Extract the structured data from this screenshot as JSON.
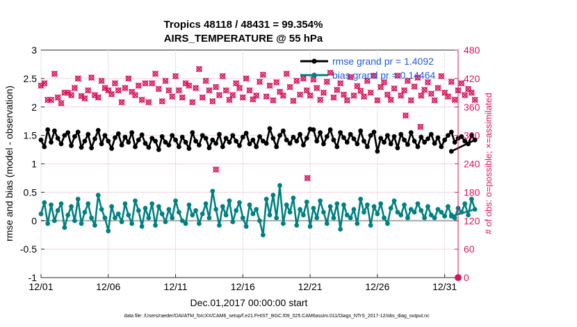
{
  "chart_data": {
    "type": "line",
    "title": "Tropics 48118 / 48431 = 99.354%",
    "subtitle": "AIRS_TEMPERATURE @ 55 hPa",
    "xlabel": "Dec.01,2017 00:00:00 start",
    "ylabel": "rmse and bias (model - observation)",
    "y2label": "# of obs: o=possible; ×=assimilated",
    "footer": "data file: /Users/raeder/DAI/ATM_forcXX/CAM6_setup/f.e21.FHIST_BGC.f09_025.CAM6assim.011/Diags_NTrS_2017-12/obs_diag_output.nc",
    "xlim": [
      1,
      32
    ],
    "ylim": [
      -1,
      3
    ],
    "y2lim": [
      0,
      480
    ],
    "x_ticks": [
      {
        "x": 1,
        "label": "12/01"
      },
      {
        "x": 6,
        "label": "12/06"
      },
      {
        "x": 11,
        "label": "12/11"
      },
      {
        "x": 16,
        "label": "12/16"
      },
      {
        "x": 21,
        "label": "12/21"
      },
      {
        "x": 26,
        "label": "12/26"
      },
      {
        "x": 31,
        "label": "12/31"
      }
    ],
    "y_ticks": [
      {
        "v": -1,
        "label": "-1"
      },
      {
        "v": -0.5,
        "label": "-0.5"
      },
      {
        "v": 0,
        "label": "0"
      },
      {
        "v": 0.5,
        "label": "0.5"
      },
      {
        "v": 1,
        "label": "1"
      },
      {
        "v": 1.5,
        "label": "1.5"
      },
      {
        "v": 2,
        "label": "2"
      },
      {
        "v": 2.5,
        "label": "2.5"
      },
      {
        "v": 3,
        "label": "3"
      }
    ],
    "y2_ticks": [
      {
        "v": 0,
        "label": "0"
      },
      {
        "v": 60,
        "label": "60"
      },
      {
        "v": 120,
        "label": "120"
      },
      {
        "v": 180,
        "label": "180"
      },
      {
        "v": 240,
        "label": "240"
      },
      {
        "v": 300,
        "label": "300"
      },
      {
        "v": 360,
        "label": "360"
      },
      {
        "v": 420,
        "label": "420"
      },
      {
        "v": 480,
        "label": "480"
      }
    ],
    "legend": [
      {
        "name": "rmse grand pr = 1.4092",
        "color": "#000000"
      },
      {
        "name": "bias grand pr = 0.14464",
        "color": "#008080"
      }
    ],
    "series": [
      {
        "name": "rmse",
        "color": "#000000",
        "x_start": 1.0,
        "x_step": 0.25,
        "values": [
          1.42,
          1.3,
          1.6,
          1.38,
          1.58,
          1.45,
          1.35,
          1.5,
          1.55,
          1.32,
          1.48,
          1.56,
          1.29,
          1.4,
          1.52,
          1.28,
          1.44,
          1.59,
          1.35,
          1.5,
          1.4,
          1.27,
          1.46,
          1.53,
          1.33,
          1.47,
          1.38,
          1.55,
          1.3,
          1.42,
          1.51,
          1.36,
          1.29,
          1.45,
          1.4,
          1.25,
          1.48,
          1.38,
          1.33,
          1.5,
          1.42,
          1.3,
          1.47,
          1.38,
          1.27,
          1.55,
          1.4,
          1.33,
          1.5,
          1.45,
          1.28,
          1.42,
          1.36,
          1.52,
          1.3,
          1.45,
          1.38,
          1.5,
          1.4,
          1.32,
          1.47,
          1.54,
          1.35,
          1.42,
          1.3,
          1.48,
          1.4,
          1.36,
          1.62,
          1.45,
          1.3,
          1.5,
          1.58,
          1.42,
          1.36,
          1.47,
          1.4,
          1.52,
          1.33,
          1.45,
          1.61,
          1.6,
          1.4,
          1.55,
          1.35,
          1.48,
          1.6,
          1.42,
          1.3,
          1.55,
          1.46,
          1.38,
          1.52,
          1.44,
          1.35,
          1.58,
          1.4,
          1.3,
          1.5,
          1.56,
          1.22,
          1.45,
          1.38,
          1.5,
          1.35,
          1.48,
          1.28,
          1.52,
          1.42,
          1.34,
          1.55,
          1.4,
          1.3,
          1.47,
          1.38,
          1.44,
          1.52,
          1.36,
          1.46,
          1.3,
          1.42,
          1.5,
          1.56,
          1.38,
          1.45,
          1.48,
          1.4,
          1.35,
          1.5,
          1.42
        ],
        "tail": [
          [
            31.5,
            1.22
          ]
        ]
      },
      {
        "name": "bias",
        "color": "#008080",
        "x_start": 1.0,
        "x_step": 0.25,
        "values": [
          0.12,
          0.32,
          -0.05,
          0.28,
          0.0,
          0.18,
          0.3,
          -0.12,
          0.1,
          0.25,
          0.0,
          0.38,
          -0.05,
          0.15,
          0.3,
          0.05,
          -0.08,
          0.45,
          0.2,
          0.05,
          -0.18,
          0.25,
          0.05,
          0.12,
          -0.02,
          0.3,
          0.1,
          -0.05,
          0.35,
          0.18,
          -0.1,
          0.22,
          0.05,
          0.3,
          -0.08,
          0.25,
          0.12,
          -0.02,
          0.2,
          0.05,
          0.35,
          0.15,
          0.0,
          -0.05,
          0.28,
          0.1,
          0.18,
          -0.05,
          0.12,
          0.3,
          0.05,
          0.52,
          0.2,
          -0.08,
          0.25,
          0.1,
          0.35,
          -0.02,
          0.18,
          0.32,
          0.05,
          -0.1,
          0.28,
          0.12,
          0.2,
          0.0,
          -0.25,
          0.38,
          0.1,
          0.45,
          0.05,
          0.62,
          -0.05,
          0.28,
          0.15,
          0.4,
          -0.08,
          0.2,
          0.1,
          0.33,
          -0.1,
          0.22,
          0.05,
          0.35,
          0.15,
          -0.05,
          0.25,
          0.05,
          0.3,
          -0.15,
          0.28,
          0.1,
          0.05,
          0.2,
          -0.05,
          0.38,
          0.15,
          0.28,
          -0.08,
          0.25,
          0.12,
          0.3,
          0.05,
          -0.05,
          0.22,
          0.35,
          0.15,
          0.1,
          0.28,
          0.05,
          0.2,
          0.15,
          0.3,
          0.18,
          0.05,
          0.25,
          0.1,
          0.05,
          0.2,
          0.15,
          0.08,
          0.25,
          0.1,
          0.05,
          0.22,
          0.15,
          0.3,
          0.1,
          0.38,
          0.2
        ],
        "tail": [
          [
            31.5,
            0.08
          ]
        ]
      }
    ],
    "obs_possible": {
      "color": "#d6155c",
      "x_start": 1.0,
      "x_step": 0.25,
      "values": [
        405,
        410,
        375,
        375,
        430,
        380,
        368,
        390,
        390,
        385,
        400,
        420,
        383,
        378,
        395,
        422,
        385,
        380,
        415,
        400,
        395,
        387,
        410,
        395,
        370,
        400,
        420,
        392,
        385,
        405,
        375,
        410,
        370,
        410,
        430,
        398,
        372,
        415,
        395,
        382,
        425,
        395,
        380,
        410,
        405,
        370,
        400,
        440,
        380,
        415,
        395,
        372,
        402,
        385,
        425,
        395,
        375,
        385,
        410,
        400,
        380,
        420,
        395,
        376,
        384,
        413,
        428,
        382,
        405,
        374,
        412,
        392,
        384,
        430,
        402,
        373,
        415,
        386,
        420,
        395,
        384,
        418,
        400,
        375,
        390,
        413,
        432,
        380,
        396,
        410,
        386,
        374,
        423,
        384,
        404,
        394,
        382,
        415,
        390,
        426,
        374,
        402,
        412,
        386,
        375,
        399,
        426,
        384,
        395,
        415,
        374,
        403,
        422,
        384,
        396,
        412,
        388,
        374,
        400,
        425,
        390,
        382,
        413,
        375,
        395,
        410,
        385,
        398,
        390,
        375
      ]
    },
    "obs_outliers": [
      [
        14,
        228
      ],
      [
        20.8,
        210
      ],
      [
        28.1,
        342
      ],
      [
        29.2,
        318
      ]
    ],
    "obs_end": [
      [
        32,
        0
      ]
    ]
  }
}
